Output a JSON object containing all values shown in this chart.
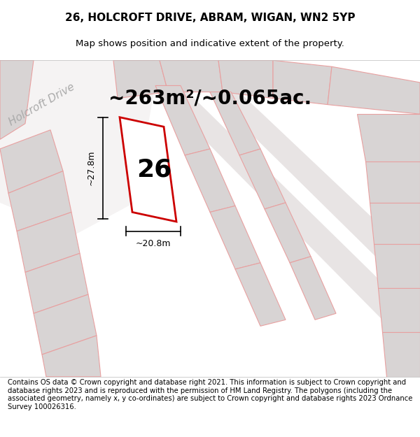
{
  "title": "26, HOLCROFT DRIVE, ABRAM, WIGAN, WN2 5YP",
  "subtitle": "Map shows position and indicative extent of the property.",
  "area_text": "~263m²/~0.065ac.",
  "number_label": "26",
  "dim_height": "~27.8m",
  "dim_width": "~20.8m",
  "road_label": "Holcroft Drive",
  "footer": "Contains OS data © Crown copyright and database right 2021. This information is subject to Crown copyright and database rights 2023 and is reproduced with the permission of HM Land Registry. The polygons (including the associated geometry, namely x, y co-ordinates) are subject to Crown copyright and database rights 2023 Ordnance Survey 100026316.",
  "map_bg": "#eeecec",
  "outline_light": "#e8a0a0",
  "outline_red": "#cc0000",
  "building_color": "#d8d4d4",
  "road_fill": "#f5f3f3",
  "title_fontsize": 11,
  "subtitle_fontsize": 9.5,
  "footer_fontsize": 7.2,
  "area_fontsize": 20,
  "number_fontsize": 26,
  "dim_fontsize": 9,
  "road_fontsize": 11
}
